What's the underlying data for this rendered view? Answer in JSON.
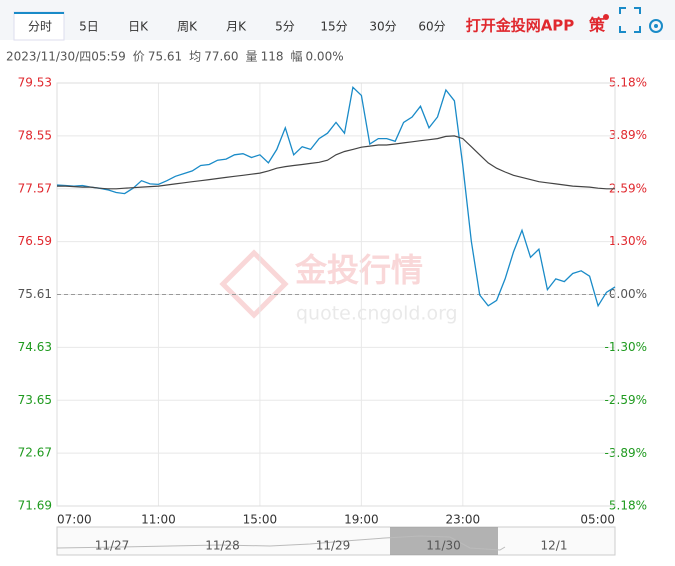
{
  "tabs": [
    "分时",
    "5日",
    "日K",
    "周K",
    "月K",
    "5分",
    "15分",
    "30分",
    "60分"
  ],
  "app_link": "打开金投网APP",
  "strategy": "策",
  "info": {
    "time": "2023/11/30/四05:59",
    "price_label": "价",
    "price": "75.61",
    "avg_label": "均",
    "avg": "77.60",
    "volume_label": "量",
    "volume": "118",
    "range_label": "幅",
    "range": "0.00%"
  },
  "watermark": {
    "name": "金投行情",
    "url": "quote.cngold.org"
  },
  "navigator": {
    "dates": [
      "11/27",
      "11/28",
      "11/29",
      "11/30",
      "12/1"
    ]
  },
  "chart_data": {
    "type": "line",
    "x": [
      "07:00",
      "07:20",
      "07:40",
      "08:00",
      "08:20",
      "08:40",
      "09:00",
      "09:20",
      "09:40",
      "10:00",
      "10:20",
      "10:40",
      "11:00",
      "11:20",
      "11:40",
      "12:00",
      "12:20",
      "12:40",
      "13:00",
      "13:20",
      "13:40",
      "14:00",
      "14:20",
      "14:40",
      "15:00",
      "15:20",
      "15:40",
      "16:00",
      "16:20",
      "16:40",
      "17:00",
      "17:20",
      "17:40",
      "18:00",
      "18:20",
      "18:40",
      "19:00",
      "19:20",
      "19:40",
      "20:00",
      "20:20",
      "20:40",
      "21:00",
      "21:20",
      "21:40",
      "22:00",
      "22:20",
      "22:40",
      "23:00",
      "23:20",
      "23:40",
      "00:00",
      "00:20",
      "00:40",
      "01:00",
      "01:20",
      "01:40",
      "02:00",
      "02:20",
      "02:40",
      "03:00",
      "03:20",
      "03:40",
      "04:00",
      "04:20",
      "04:40",
      "05:00"
    ],
    "series": [
      {
        "color": "#1a8bc8",
        "values": [
          77.64,
          77.63,
          77.62,
          77.63,
          77.6,
          77.58,
          77.55,
          77.5,
          77.48,
          77.58,
          77.72,
          77.66,
          77.65,
          77.72,
          77.8,
          77.85,
          77.9,
          78.0,
          78.02,
          78.1,
          78.12,
          78.2,
          78.22,
          78.15,
          78.2,
          78.05,
          78.3,
          78.7,
          78.2,
          78.35,
          78.3,
          78.5,
          78.6,
          78.8,
          78.6,
          79.45,
          79.3,
          78.4,
          78.5,
          78.5,
          78.45,
          78.8,
          78.9,
          79.1,
          78.7,
          78.9,
          79.4,
          79.2,
          78.0,
          76.6,
          75.6,
          75.4,
          75.5,
          75.9,
          76.4,
          76.8,
          76.3,
          76.45,
          75.7,
          75.9,
          75.85,
          76.0,
          76.05,
          75.95,
          75.4,
          75.65,
          75.75
        ]
      },
      {
        "color": "#444444",
        "values": [
          77.62,
          77.62,
          77.61,
          77.6,
          77.6,
          77.58,
          77.57,
          77.57,
          77.58,
          77.59,
          77.6,
          77.61,
          77.62,
          77.64,
          77.66,
          77.68,
          77.7,
          77.72,
          77.74,
          77.76,
          77.78,
          77.8,
          77.82,
          77.84,
          77.86,
          77.9,
          77.95,
          77.98,
          78.0,
          78.02,
          78.04,
          78.06,
          78.1,
          78.2,
          78.26,
          78.3,
          78.34,
          78.36,
          78.38,
          78.38,
          78.4,
          78.42,
          78.44,
          78.46,
          78.48,
          78.5,
          78.54,
          78.55,
          78.5,
          78.35,
          78.2,
          78.05,
          77.95,
          77.88,
          77.82,
          77.78,
          77.74,
          77.7,
          77.68,
          77.66,
          77.64,
          77.62,
          77.61,
          77.6,
          77.58,
          77.57,
          77.57
        ]
      }
    ],
    "baseline": 75.61,
    "ylim": [
      71.69,
      79.53
    ],
    "yticks": [
      79.53,
      78.55,
      77.57,
      76.59,
      75.61,
      74.63,
      73.65,
      72.67,
      71.69
    ],
    "y2lim": [
      -5.18,
      5.18
    ],
    "y2ticks": [
      {
        "value": 5.18,
        "label": "5.18%"
      },
      {
        "value": 3.89,
        "label": "3.89%"
      },
      {
        "value": 2.59,
        "label": "2.59%"
      },
      {
        "value": 1.3,
        "label": "1.30%"
      },
      {
        "value": 0,
        "label": "0.00%"
      },
      {
        "value": -1.3,
        "label": "-1.30%"
      },
      {
        "value": -2.59,
        "label": "-2.59%"
      },
      {
        "value": -3.89,
        "label": "-3.89%"
      },
      {
        "value": -5.18,
        "label": "-5.18%"
      }
    ],
    "xticks": [
      "07:00",
      "11:00",
      "15:00",
      "19:00",
      "23:00",
      "05:00"
    ],
    "up_color": "#e0282e",
    "down_color": "#1f9a1f",
    "flat_color": "#555555",
    "grid": true
  }
}
